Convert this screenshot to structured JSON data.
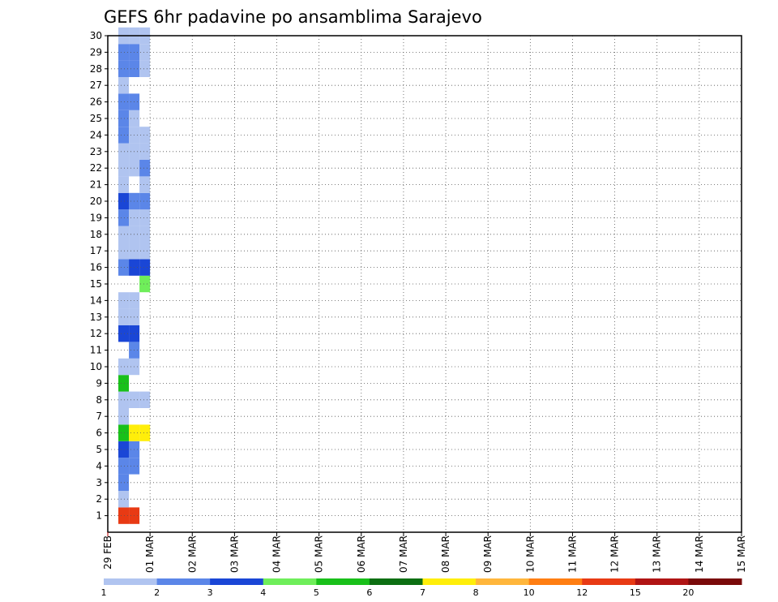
{
  "chart_data": {
    "type": "heatmap",
    "title": "GEFS 6hr padavine po ansamblima Sarajevo",
    "xlabel": "",
    "ylabel": "",
    "x_tick_labels": [
      "29 FEB",
      "01 MAR",
      "02 MAR",
      "03 MAR",
      "04 MAR",
      "05 MAR",
      "06 MAR",
      "07 MAR",
      "08 MAR",
      "09 MAR",
      "10 MAR",
      "11 MAR",
      "12 MAR",
      "13 MAR",
      "14 MAR",
      "15 MAR"
    ],
    "y_tick_labels": [
      "1",
      "2",
      "3",
      "4",
      "5",
      "6",
      "7",
      "8",
      "9",
      "10",
      "11",
      "12",
      "13",
      "14",
      "15",
      "16",
      "17",
      "18",
      "19",
      "20",
      "21",
      "22",
      "23",
      "24",
      "25",
      "26",
      "27",
      "28",
      "29",
      "30"
    ],
    "x_range_days": [
      0,
      15
    ],
    "time_step_hours": 6,
    "members_range": [
      0,
      30
    ],
    "grid": true,
    "colorbar": {
      "levels": [
        "1",
        "2",
        "3",
        "4",
        "5",
        "6",
        "7",
        "8",
        "10",
        "12",
        "15",
        "20"
      ],
      "colors": [
        "#b0c4f0",
        "#5b86e8",
        "#1a46d6",
        "#6fee5a",
        "#19c01a",
        "#0c6f12",
        "#ffee0a",
        "#ffb63c",
        "#ff7e12",
        "#e83a14",
        "#b01414",
        "#7a0a0a"
      ]
    },
    "cells": [
      [
        0,
        0.25,
        0,
        9
      ],
      [
        0,
        0.5,
        0,
        9
      ],
      [
        0,
        0.25,
        1,
        0
      ],
      [
        0,
        0.25,
        2,
        1
      ],
      [
        0,
        0.25,
        3,
        1
      ],
      [
        0,
        0.5,
        3,
        1
      ],
      [
        0,
        0.5,
        4,
        1
      ],
      [
        0,
        0.25,
        4,
        2
      ],
      [
        0,
        0.25,
        5,
        4
      ],
      [
        0,
        0.5,
        5,
        6
      ],
      [
        0,
        0.75,
        5,
        6
      ],
      [
        0,
        0.25,
        6,
        0
      ],
      [
        0,
        0.25,
        7,
        0
      ],
      [
        0,
        0.5,
        7,
        0
      ],
      [
        0,
        0.75,
        7,
        0
      ],
      [
        0,
        0.25,
        8,
        4
      ],
      [
        0,
        0.25,
        9,
        0
      ],
      [
        0,
        0.5,
        9,
        0
      ],
      [
        0,
        0.5,
        10,
        1
      ],
      [
        0,
        0.25,
        11,
        2
      ],
      [
        0,
        0.5,
        11,
        2
      ],
      [
        0,
        0.25,
        12,
        0
      ],
      [
        0,
        0.5,
        12,
        0
      ],
      [
        0,
        0.25,
        13,
        0
      ],
      [
        0,
        0.5,
        13,
        0
      ],
      [
        0,
        0.75,
        14,
        3
      ],
      [
        0,
        0.25,
        15,
        1
      ],
      [
        0,
        0.5,
        15,
        2
      ],
      [
        0,
        0.75,
        15,
        2
      ],
      [
        0,
        0.25,
        16,
        0
      ],
      [
        0,
        0.5,
        16,
        0
      ],
      [
        0,
        0.75,
        16,
        0
      ],
      [
        0,
        0.25,
        17,
        0
      ],
      [
        0,
        0.5,
        17,
        0
      ],
      [
        0,
        0.75,
        17,
        0
      ],
      [
        0,
        0.25,
        18,
        1
      ],
      [
        0,
        0.5,
        18,
        0
      ],
      [
        0,
        0.75,
        18,
        0
      ],
      [
        0,
        0.25,
        19,
        2
      ],
      [
        0,
        0.5,
        19,
        1
      ],
      [
        0,
        0.75,
        19,
        1
      ],
      [
        0,
        0.25,
        20,
        0
      ],
      [
        0,
        0.75,
        20,
        0
      ],
      [
        0,
        0.25,
        21,
        0
      ],
      [
        0,
        0.5,
        21,
        0
      ],
      [
        0,
        0.75,
        21,
        1
      ],
      [
        0,
        0.25,
        22,
        0
      ],
      [
        0,
        0.5,
        22,
        0
      ],
      [
        0,
        0.75,
        22,
        0
      ],
      [
        0,
        0.25,
        23,
        1
      ],
      [
        0,
        0.5,
        23,
        0
      ],
      [
        0,
        0.75,
        23,
        0
      ],
      [
        0,
        0.25,
        24,
        1
      ],
      [
        0,
        0.5,
        24,
        0
      ],
      [
        0,
        0.25,
        25,
        1
      ],
      [
        0,
        0.5,
        25,
        1
      ],
      [
        0,
        0.25,
        26,
        0
      ],
      [
        0,
        0.25,
        27,
        1
      ],
      [
        0,
        0.5,
        27,
        1
      ],
      [
        0,
        0.75,
        27,
        0
      ],
      [
        0,
        0.25,
        28,
        1
      ],
      [
        0,
        0.5,
        28,
        1
      ],
      [
        0,
        0.75,
        28,
        0
      ],
      [
        0,
        0.25,
        29,
        0
      ],
      [
        0,
        0.5,
        29,
        0
      ],
      [
        0,
        0.75,
        29,
        0
      ]
    ]
  }
}
